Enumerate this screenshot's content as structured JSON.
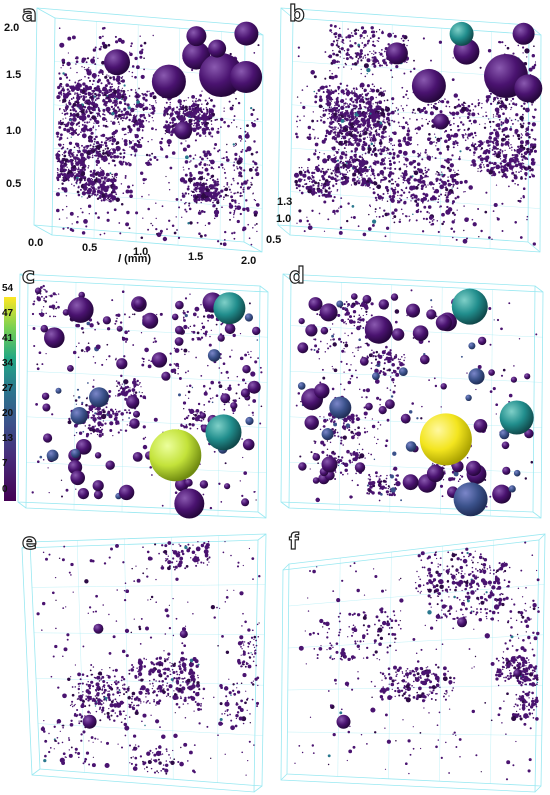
{
  "panels": [
    {
      "id": "a",
      "label": "a",
      "seed": 11,
      "density": "dense",
      "big_spheres": true,
      "colored": false
    },
    {
      "id": "b",
      "label": "b",
      "seed": 23,
      "density": "dense",
      "big_spheres": true,
      "colored": false
    },
    {
      "id": "c",
      "label": "c",
      "seed": 37,
      "density": "spheres",
      "big_spheres": true,
      "colored": true
    },
    {
      "id": "d",
      "label": "d",
      "seed": 53,
      "density": "spheres",
      "big_spheres": true,
      "colored": true
    },
    {
      "id": "e",
      "label": "e",
      "seed": 71,
      "density": "sparse",
      "big_spheres": false,
      "colored": false
    },
    {
      "id": "f",
      "label": "f",
      "seed": 89,
      "density": "sparse",
      "big_spheres": false,
      "colored": false
    }
  ],
  "axes": {
    "y_ticks": [
      "2.0",
      "1.5",
      "1.0",
      "0.5"
    ],
    "x_ticks": [
      "0.0",
      "0.5",
      "1.0",
      "1.5",
      "2.0"
    ],
    "z_ticks": [
      "1.3",
      "1.0",
      "0.5"
    ],
    "x_label_italic": "l",
    "x_label_unit": " (mm)"
  },
  "colorbar": {
    "ticks": [
      "54",
      "47",
      "41",
      "34",
      "27",
      "20",
      "13",
      "7",
      "0"
    ],
    "colors": [
      "#fde725",
      "#7ad151",
      "#22a884",
      "#2a788e",
      "#3b528b",
      "#472d7b",
      "#440154"
    ]
  },
  "style": {
    "cube_color": "#8ee6f0",
    "pore_color": "#4a1370",
    "pore_dark": "#2d0a45",
    "pore_highlight": "#8a5ab0"
  }
}
